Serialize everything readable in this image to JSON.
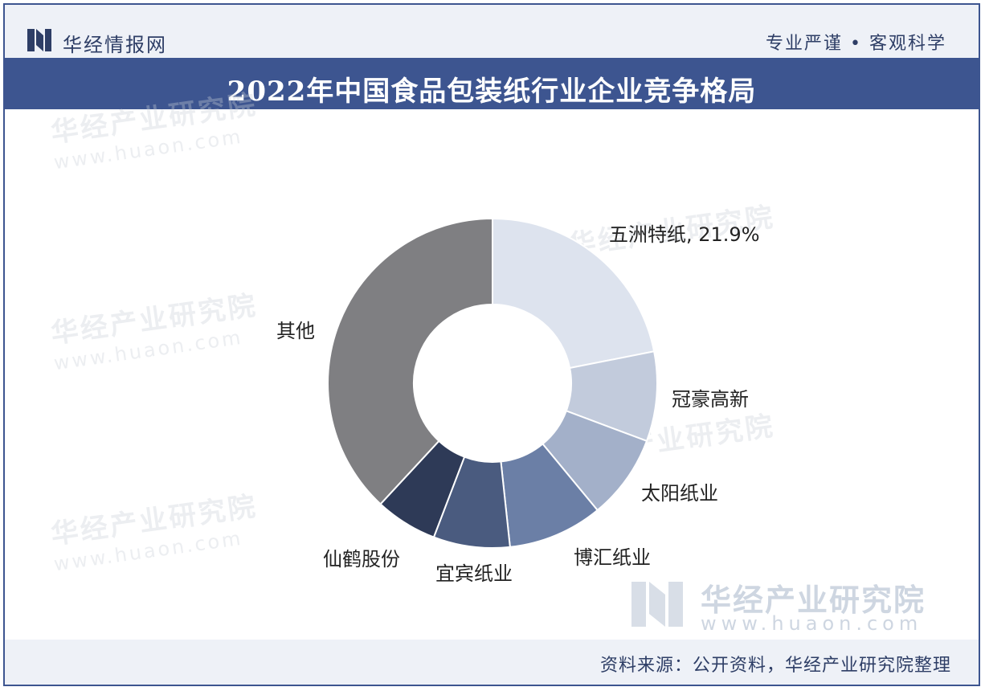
{
  "header": {
    "brand": "华经情报网",
    "slogan": "专业严谨 • 客观科学"
  },
  "title": "2022年中国食品包装纸行业企业竞争格局",
  "watermark": {
    "text": "华经产业研究院",
    "url": "www.huaon.com"
  },
  "footer": {
    "source": "资料来源：公开资料，华经产业研究院整理"
  },
  "colors": {
    "brand_blue": "#3d5590",
    "slices": [
      "#dde3ee",
      "#c2cbdc",
      "#a3b0c9",
      "#6b7fa6",
      "#4a5b7f",
      "#2e3a57",
      "#7f7f82"
    ]
  },
  "chart_data": {
    "type": "pie",
    "hole": true,
    "labels": [
      "五洲特纸",
      "冠豪高新",
      "太阳纸业",
      "博汇纸业",
      "宜宾纸业",
      "仙鹤股份",
      "其他"
    ],
    "values": [
      21.9,
      8.8,
      8.3,
      9.3,
      7.5,
      6.1,
      38.1
    ],
    "data_labels": [
      "五洲特纸, 21.9%",
      "冠豪高新",
      "太阳纸业",
      "博汇纸业",
      "宜宾纸业",
      "仙鹤股份",
      "其他"
    ]
  }
}
